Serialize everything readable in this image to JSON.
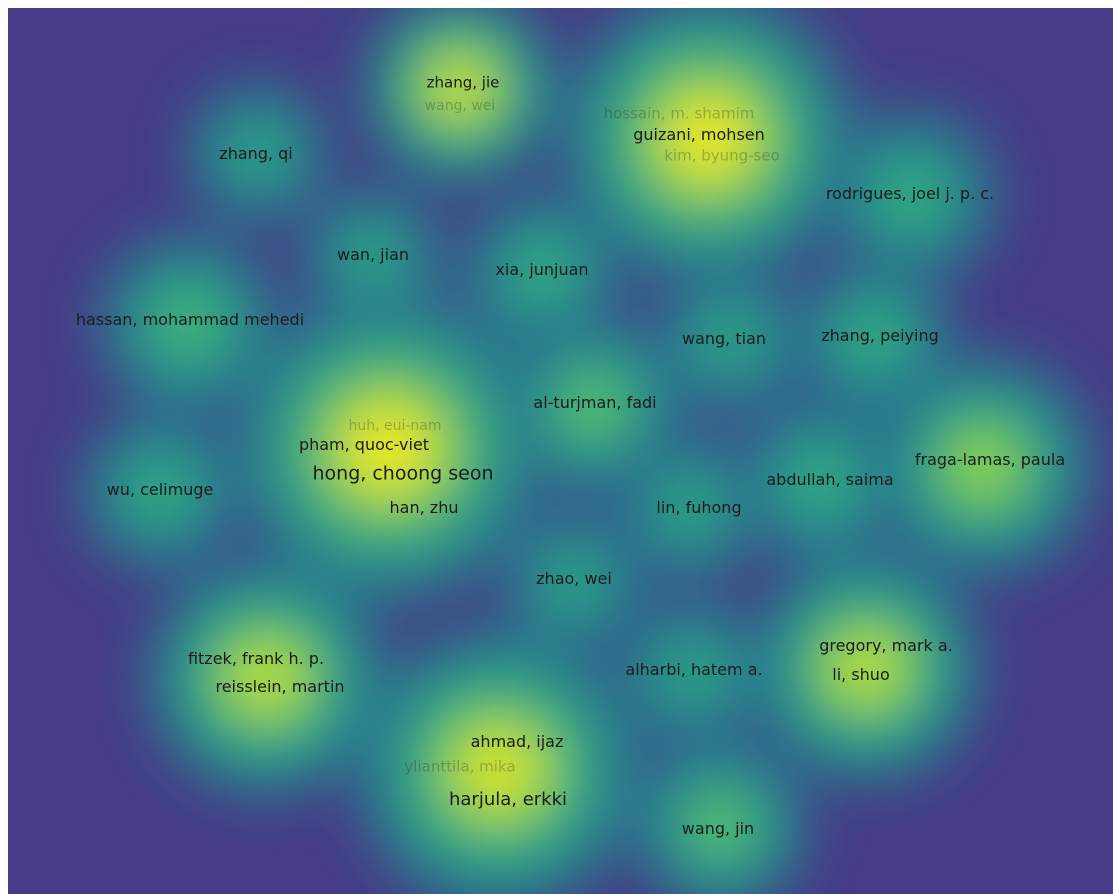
{
  "map": {
    "background_color": "#453c85",
    "colormap": [
      "#453c85",
      "#2f6b8e",
      "#21918c",
      "#3bb77a",
      "#9bd93c",
      "#f5ea1c"
    ]
  },
  "nodes": [
    {
      "label": "zhang, jie",
      "density": 0.95,
      "dim": false
    },
    {
      "label": "wang, wei",
      "density": 0.95,
      "dim": true
    },
    {
      "label": "hossain, m. shamim",
      "density": 1.0,
      "dim": true
    },
    {
      "label": "guizani, mohsen",
      "density": 1.0,
      "dim": false
    },
    {
      "label": "kim, byung-seo",
      "density": 1.0,
      "dim": true
    },
    {
      "label": "zhang, qi",
      "density": 0.55,
      "dim": false
    },
    {
      "label": "rodrigues, joel j. p. c.",
      "density": 0.6,
      "dim": false
    },
    {
      "label": "wan, jian",
      "density": 0.55,
      "dim": false
    },
    {
      "label": "xia, junjuan",
      "density": 0.6,
      "dim": false
    },
    {
      "label": "hassan, mohammad mehedi",
      "density": 0.65,
      "dim": false
    },
    {
      "label": "wang, tian",
      "density": 0.55,
      "dim": false
    },
    {
      "label": "zhang, peiying",
      "density": 0.6,
      "dim": false
    },
    {
      "label": "al-turjman, fadi",
      "density": 0.7,
      "dim": false
    },
    {
      "label": "huh, eui-nam",
      "density": 1.0,
      "dim": true
    },
    {
      "label": "pham, quoc-viet",
      "density": 1.0,
      "dim": false
    },
    {
      "label": "hong, choong seon",
      "density": 1.0,
      "dim": false
    },
    {
      "label": "han, zhu",
      "density": 1.0,
      "dim": false
    },
    {
      "label": "wu, celimuge",
      "density": 0.6,
      "dim": false
    },
    {
      "label": "lin, fuhong",
      "density": 0.55,
      "dim": false
    },
    {
      "label": "abdullah, saima",
      "density": 0.6,
      "dim": false
    },
    {
      "label": "fraga-lamas, paula",
      "density": 0.8,
      "dim": false
    },
    {
      "label": "zhao, wei",
      "density": 0.55,
      "dim": false
    },
    {
      "label": "fitzek, frank h. p.",
      "density": 0.9,
      "dim": false
    },
    {
      "label": "reisslein, martin",
      "density": 0.9,
      "dim": false
    },
    {
      "label": "alharbi, hatem a.",
      "density": 0.55,
      "dim": false
    },
    {
      "label": "gregory, mark a.",
      "density": 0.9,
      "dim": false
    },
    {
      "label": "li, shuo",
      "density": 0.9,
      "dim": false
    },
    {
      "label": "ahmad, ijaz",
      "density": 0.95,
      "dim": false
    },
    {
      "label": "ylianttila, mika",
      "density": 0.95,
      "dim": true
    },
    {
      "label": "harjula, erkki",
      "density": 0.95,
      "dim": false
    },
    {
      "label": "wang, jin",
      "density": 0.7,
      "dim": false
    }
  ]
}
